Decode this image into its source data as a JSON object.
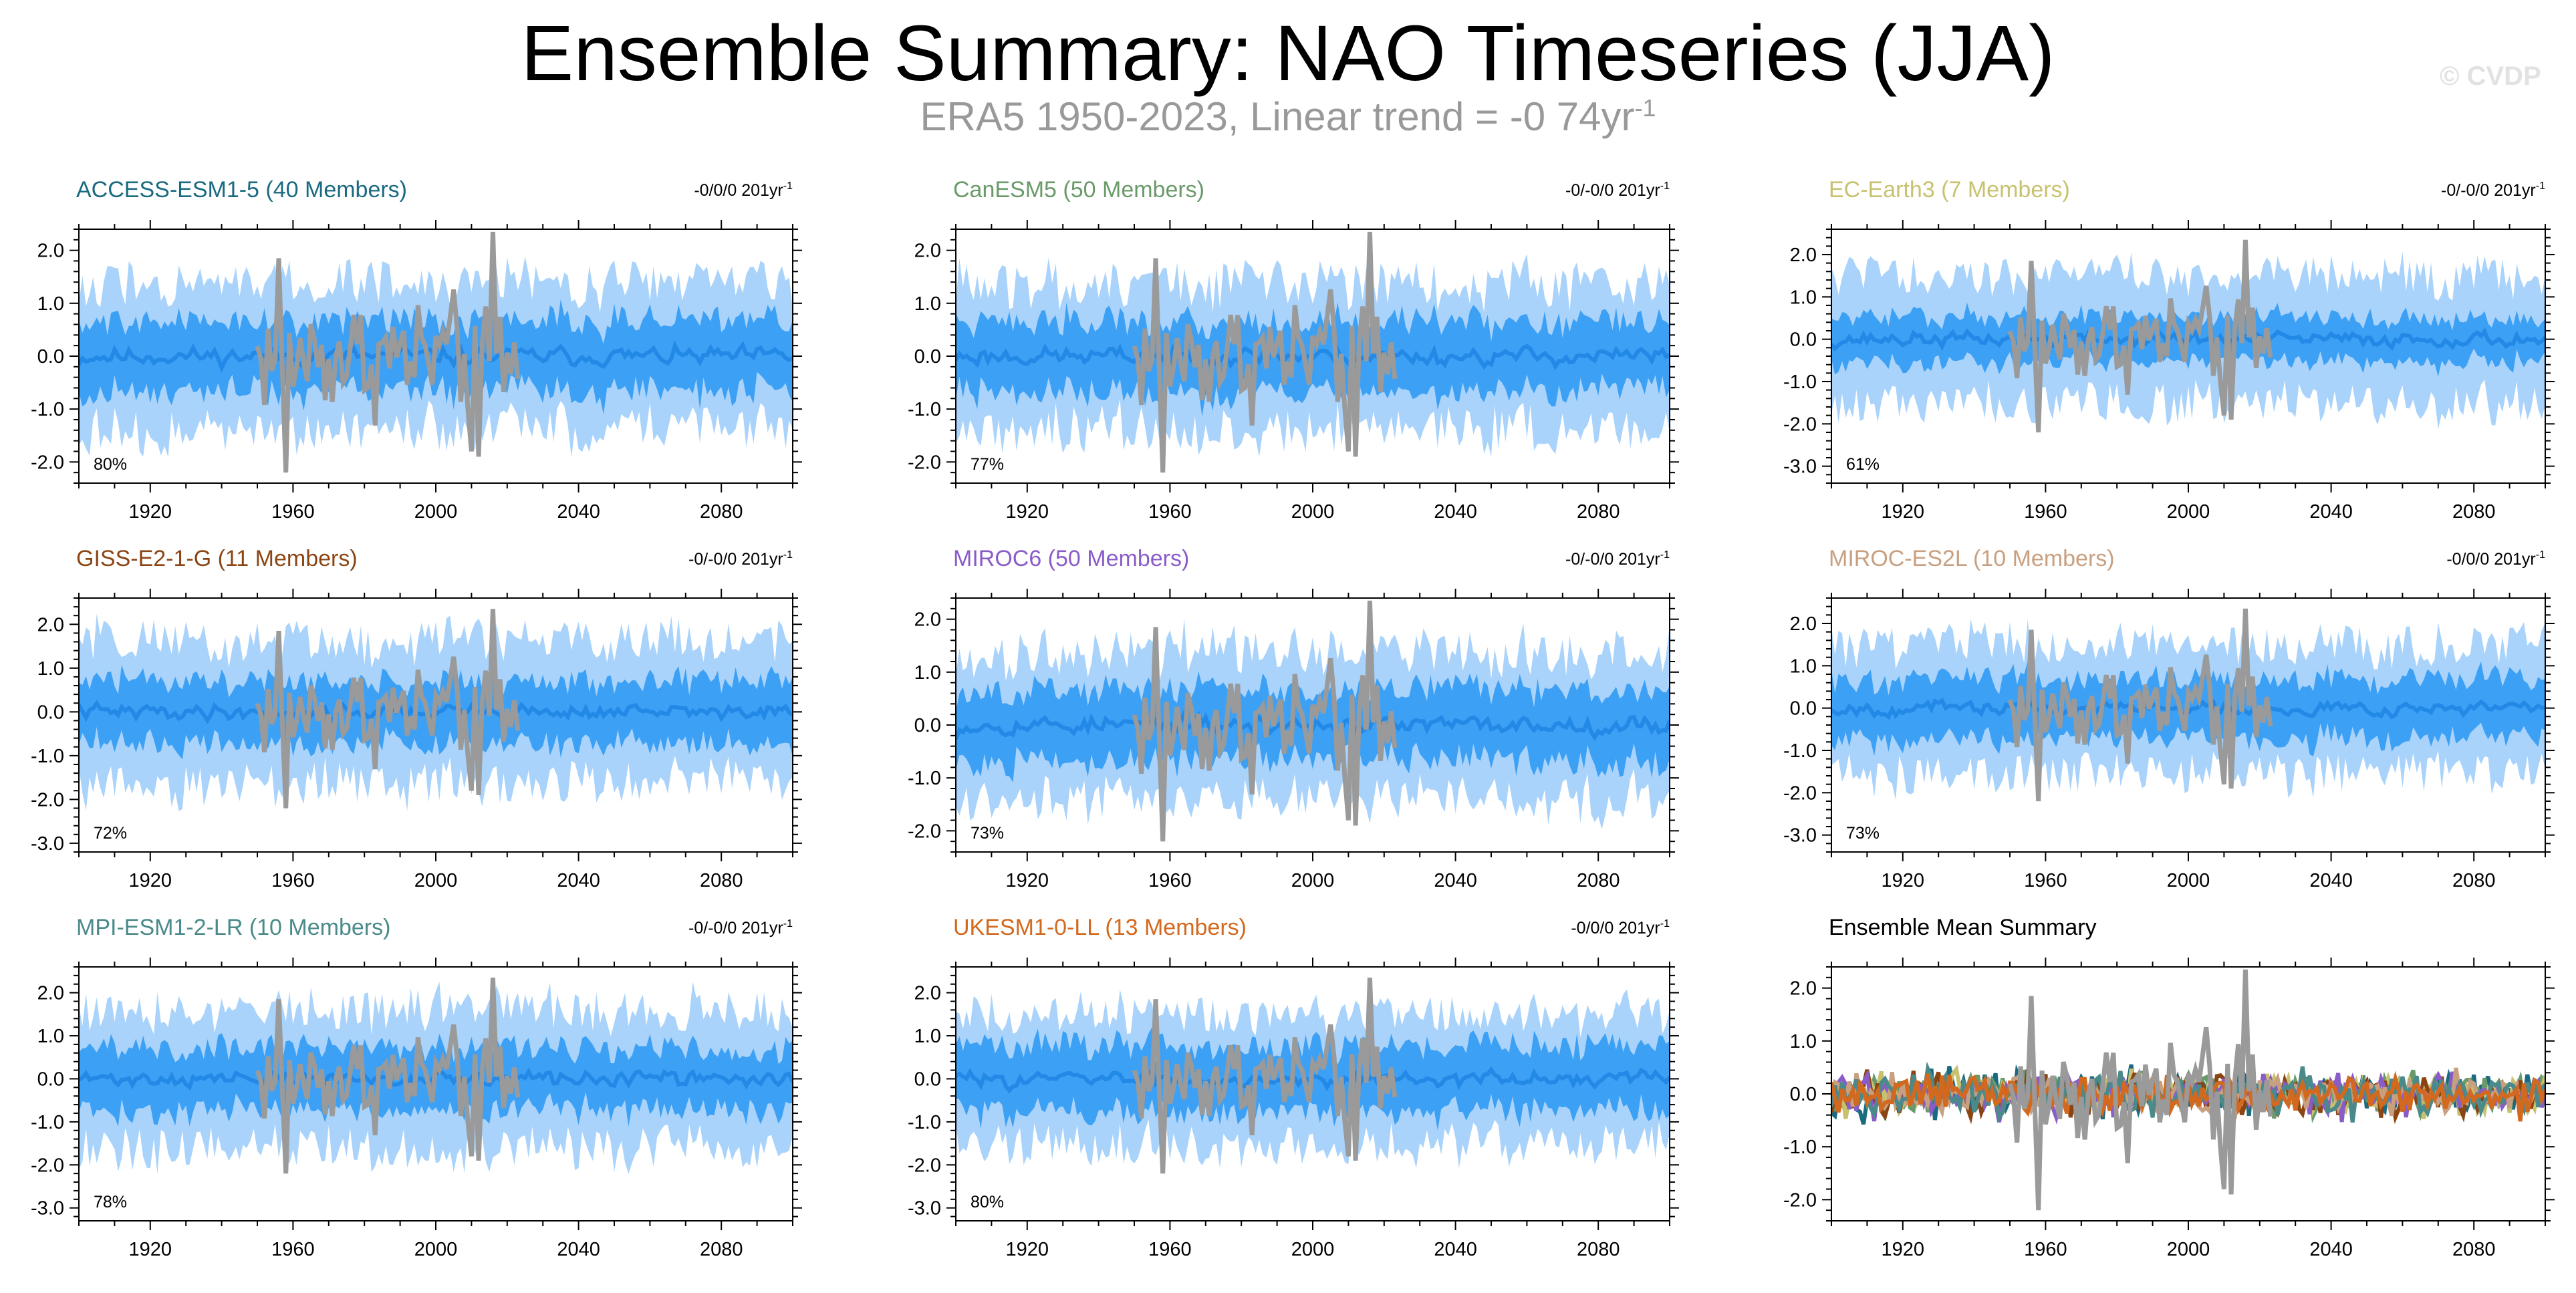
{
  "header": {
    "title": "Ensemble Summary: NAO Timeseries (JJA)",
    "subtitle_text": "ERA5 1950-2023, Linear trend = -0 74yr",
    "subtitle_sup": "-1",
    "watermark": "© CVDP"
  },
  "colors": {
    "outer_band": "#a9d3fb",
    "inner_band": "#3ca0f5",
    "ensemble_mean": "#2389e6",
    "observations": "#9a9a9a"
  },
  "chart_data": [
    {
      "type": "area",
      "title": "ACCESS-ESM1-5 (40 Members)",
      "title_color": "#1a6a80",
      "trend_text": "-0/0/0 201yr",
      "trend_sup": "-1",
      "percent_label": "80%",
      "xlim": [
        1900,
        2100
      ],
      "ylim": [
        -2.4,
        2.4
      ],
      "yticks": [
        2.0,
        1.0,
        0.0,
        -1.0,
        -2.0
      ],
      "xticks": [
        1920,
        1960,
        2000,
        2040,
        2080
      ],
      "outer_spread": 1.45,
      "inner_spread": 0.7,
      "seed": 11
    },
    {
      "type": "area",
      "title": "CanESM5 (50 Members)",
      "title_color": "#6a9a6a",
      "trend_text": "-0/-0/0 201yr",
      "trend_sup": "-1",
      "percent_label": "77%",
      "xlim": [
        1900,
        2100
      ],
      "ylim": [
        -2.4,
        2.4
      ],
      "yticks": [
        2.0,
        1.0,
        0.0,
        -1.0,
        -2.0
      ],
      "xticks": [
        1920,
        1960,
        2000,
        2040,
        2080
      ],
      "outer_spread": 1.45,
      "inner_spread": 0.7,
      "seed": 23
    },
    {
      "type": "area",
      "title": "EC-Earth3 (7 Members)",
      "title_color": "#c8c270",
      "trend_text": "-0/-0/0 201yr",
      "trend_sup": "-1",
      "percent_label": "61%",
      "xlim": [
        1900,
        2100
      ],
      "ylim": [
        -3.4,
        2.6
      ],
      "yticks": [
        2.0,
        1.0,
        0.0,
        -1.0,
        -2.0,
        -3.0
      ],
      "xticks": [
        1920,
        1960,
        2000,
        2040,
        2080
      ],
      "outer_spread": 1.6,
      "inner_spread": 0.55,
      "seed": 37
    },
    {
      "type": "area",
      "title": "GISS-E2-1-G (11 Members)",
      "title_color": "#8b4513",
      "trend_text": "-0/-0/0 201yr",
      "trend_sup": "-1",
      "percent_label": "72%",
      "xlim": [
        1900,
        2100
      ],
      "ylim": [
        -3.2,
        2.6
      ],
      "yticks": [
        2.0,
        1.0,
        0.0,
        -1.0,
        -2.0,
        -3.0
      ],
      "xticks": [
        1920,
        1960,
        2000,
        2040,
        2080
      ],
      "outer_spread": 1.7,
      "inner_spread": 0.75,
      "seed": 41
    },
    {
      "type": "area",
      "title": "MIROC6 (50 Members)",
      "title_color": "#8a5cc8",
      "trend_text": "-0/-0/0 201yr",
      "trend_sup": "-1",
      "percent_label": "73%",
      "xlim": [
        1900,
        2100
      ],
      "ylim": [
        -2.4,
        2.4
      ],
      "yticks": [
        2.0,
        1.0,
        0.0,
        -1.0,
        -2.0
      ],
      "xticks": [
        1920,
        1960,
        2000,
        2040,
        2080
      ],
      "outer_spread": 1.45,
      "inner_spread": 0.7,
      "seed": 53
    },
    {
      "type": "area",
      "title": "MIROC-ES2L (10 Members)",
      "title_color": "#c8a080",
      "trend_text": "-0/0/0 201yr",
      "trend_sup": "-1",
      "percent_label": "73%",
      "xlim": [
        1900,
        2100
      ],
      "ylim": [
        -3.4,
        2.6
      ],
      "yticks": [
        2.0,
        1.0,
        0.0,
        -1.0,
        -2.0,
        -3.0
      ],
      "xticks": [
        1920,
        1960,
        2000,
        2040,
        2080
      ],
      "outer_spread": 1.6,
      "inner_spread": 0.75,
      "seed": 67
    },
    {
      "type": "area",
      "title": "MPI-ESM1-2-LR (10 Members)",
      "title_color": "#4a8a8a",
      "trend_text": "-0/-0/0 201yr",
      "trend_sup": "-1",
      "percent_label": "78%",
      "xlim": [
        1900,
        2100
      ],
      "ylim": [
        -3.3,
        2.6
      ],
      "yticks": [
        2.0,
        1.0,
        0.0,
        -1.0,
        -2.0,
        -3.0
      ],
      "xticks": [
        1920,
        1960,
        2000,
        2040,
        2080
      ],
      "outer_spread": 1.7,
      "inner_spread": 0.75,
      "seed": 71
    },
    {
      "type": "area",
      "title": "UKESM1-0-LL (13 Members)",
      "title_color": "#d2691e",
      "trend_text": "-0/0/0 201yr",
      "trend_sup": "-1",
      "percent_label": "80%",
      "xlim": [
        1900,
        2100
      ],
      "ylim": [
        -3.3,
        2.6
      ],
      "yticks": [
        2.0,
        1.0,
        0.0,
        -1.0,
        -2.0,
        -3.0
      ],
      "xticks": [
        1920,
        1960,
        2000,
        2040,
        2080
      ],
      "outer_spread": 1.6,
      "inner_spread": 0.8,
      "seed": 83
    },
    {
      "type": "line",
      "title": "Ensemble Mean Summary",
      "title_color": "#000000",
      "xlim": [
        1900,
        2100
      ],
      "ylim": [
        -2.4,
        2.4
      ],
      "yticks": [
        2.0,
        1.0,
        0.0,
        -1.0,
        -2.0
      ],
      "xticks": [
        1920,
        1960,
        2000,
        2040,
        2080
      ],
      "series_colors": [
        "#1a6a80",
        "#6a9a6a",
        "#c8c270",
        "#8b4513",
        "#8a5cc8",
        "#c8a080",
        "#4a8a8a",
        "#d2691e"
      ],
      "seed": 97
    }
  ]
}
